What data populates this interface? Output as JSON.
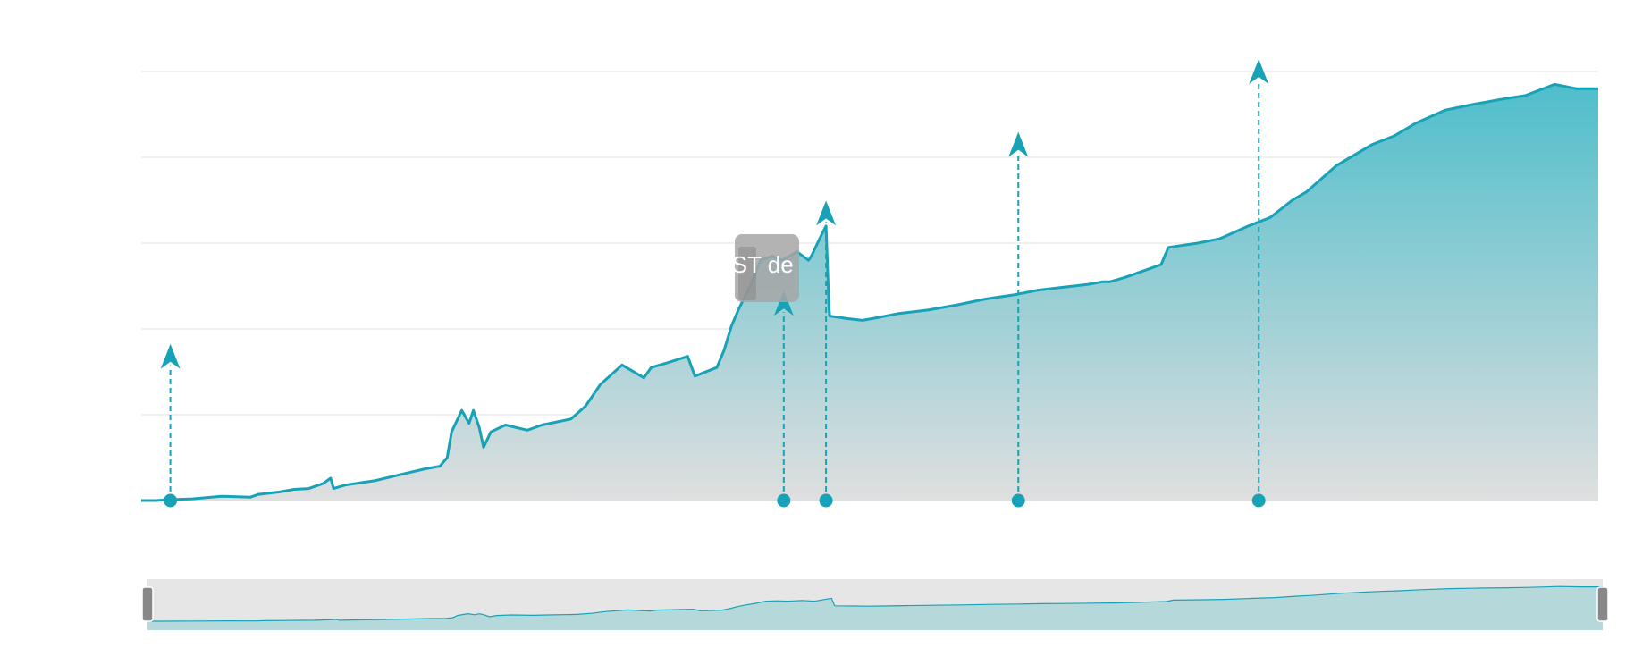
{
  "chart_data": {
    "type": "area",
    "title": "",
    "xlabel": "",
    "ylabel": "",
    "ylim": [
      0,
      5
    ],
    "y_gridlines": [
      0,
      1,
      2,
      3,
      4,
      5
    ],
    "x_index_range": [
      0,
      1000
    ],
    "grid": true,
    "legend": "none",
    "series": [
      {
        "points": [
          [
            0,
            0.0
          ],
          [
            10,
            0.0
          ],
          [
            20,
            0.01
          ],
          [
            35,
            0.02
          ],
          [
            55,
            0.05
          ],
          [
            75,
            0.04
          ],
          [
            80,
            0.07
          ],
          [
            95,
            0.1
          ],
          [
            105,
            0.13
          ],
          [
            115,
            0.14
          ],
          [
            125,
            0.2
          ],
          [
            130,
            0.26
          ],
          [
            132,
            0.14
          ],
          [
            140,
            0.18
          ],
          [
            160,
            0.23
          ],
          [
            180,
            0.31
          ],
          [
            195,
            0.37
          ],
          [
            205,
            0.4
          ],
          [
            210,
            0.5
          ],
          [
            213,
            0.8
          ],
          [
            220,
            1.05
          ],
          [
            225,
            0.9
          ],
          [
            228,
            1.05
          ],
          [
            232,
            0.85
          ],
          [
            235,
            0.62
          ],
          [
            240,
            0.8
          ],
          [
            250,
            0.88
          ],
          [
            265,
            0.82
          ],
          [
            275,
            0.88
          ],
          [
            295,
            0.95
          ],
          [
            305,
            1.1
          ],
          [
            315,
            1.35
          ],
          [
            330,
            1.58
          ],
          [
            345,
            1.43
          ],
          [
            350,
            1.55
          ],
          [
            360,
            1.6
          ],
          [
            375,
            1.68
          ],
          [
            380,
            1.45
          ],
          [
            395,
            1.55
          ],
          [
            400,
            1.75
          ],
          [
            405,
            2.03
          ],
          [
            410,
            2.23
          ],
          [
            418,
            2.5
          ],
          [
            425,
            2.8
          ],
          [
            433,
            2.85
          ],
          [
            440,
            2.8
          ],
          [
            450,
            2.9
          ],
          [
            458,
            2.8
          ],
          [
            460,
            2.85
          ],
          [
            467,
            3.1
          ],
          [
            470,
            3.2
          ],
          [
            472,
            2.25
          ],
          [
            472.5,
            2.15
          ],
          [
            485,
            2.12
          ],
          [
            495,
            2.1
          ],
          [
            505,
            2.13
          ],
          [
            520,
            2.18
          ],
          [
            540,
            2.22
          ],
          [
            560,
            2.28
          ],
          [
            580,
            2.35
          ],
          [
            600,
            2.4
          ],
          [
            615,
            2.45
          ],
          [
            630,
            2.48
          ],
          [
            650,
            2.52
          ],
          [
            660,
            2.55
          ],
          [
            665,
            2.55
          ],
          [
            675,
            2.6
          ],
          [
            700,
            2.75
          ],
          [
            705,
            2.95
          ],
          [
            725,
            3.0
          ],
          [
            740,
            3.05
          ],
          [
            760,
            3.2
          ],
          [
            775,
            3.3
          ],
          [
            790,
            3.5
          ],
          [
            800,
            3.6
          ],
          [
            820,
            3.9
          ],
          [
            835,
            4.05
          ],
          [
            845,
            4.15
          ],
          [
            860,
            4.25
          ],
          [
            875,
            4.4
          ],
          [
            895,
            4.55
          ],
          [
            915,
            4.62
          ],
          [
            935,
            4.68
          ],
          [
            950,
            4.72
          ],
          [
            970,
            4.85
          ],
          [
            985,
            4.8
          ],
          [
            1000,
            4.8
          ]
        ]
      }
    ],
    "annotations": [
      {
        "x": 20,
        "arrow_top": 1.68
      },
      {
        "x": 441,
        "arrow_top": 2.3
      },
      {
        "x": 470,
        "arrow_top": 3.35
      },
      {
        "x": 602,
        "arrow_top": 4.15
      },
      {
        "x": 767,
        "arrow_top": 5.0
      }
    ],
    "tooltip_text": "UST de",
    "navigator": {
      "selected_range": [
        0,
        1000
      ]
    },
    "colors": {
      "line": "#17a2b8",
      "area_top": "#4fbecb",
      "area_bottom": "#dfdfdf",
      "grid": "#ebebeb",
      "navigator_bg": "#e6e6e6",
      "navigator_area": "#b5d9da",
      "handle": "#888888",
      "tooltip_bg": "#a6a6a6",
      "tooltip_text": "#ffffff"
    }
  }
}
